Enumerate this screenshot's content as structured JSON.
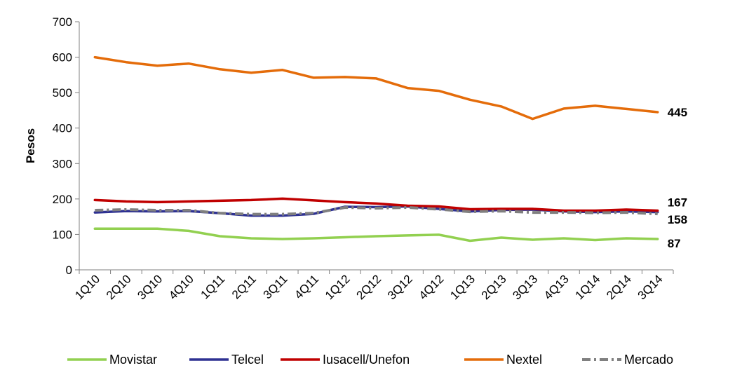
{
  "chart_data": {
    "type": "line",
    "title": "",
    "xlabel": "",
    "ylabel": "Pesos",
    "ylim": [
      0,
      700
    ],
    "yticks": [
      0,
      100,
      200,
      300,
      400,
      500,
      600,
      700
    ],
    "grid": false,
    "legend_position": "bottom",
    "categories": [
      "1Q10",
      "2Q10",
      "3Q10",
      "4Q10",
      "1Q11",
      "2Q11",
      "3Q11",
      "4Q11",
      "1Q12",
      "2Q12",
      "3Q12",
      "4Q12",
      "1Q13",
      "2Q13",
      "3Q13",
      "4Q13",
      "1Q14",
      "2Q14",
      "3Q14"
    ],
    "series": [
      {
        "name": "Movistar",
        "color": "#92D050",
        "dash": "solid",
        "values": [
          116,
          116,
          116,
          110,
          95,
          89,
          87,
          89,
          92,
          95,
          97,
          99,
          82,
          91,
          85,
          89,
          84,
          89,
          87
        ]
      },
      {
        "name": "Telcel",
        "color": "#2E3192",
        "dash": "solid",
        "values": [
          162,
          166,
          165,
          166,
          160,
          153,
          153,
          158,
          178,
          177,
          179,
          172,
          165,
          169,
          170,
          165,
          163,
          165,
          163
        ]
      },
      {
        "name": "Iusacell/Unefon",
        "color": "#C00000",
        "dash": "solid",
        "values": [
          197,
          193,
          191,
          193,
          195,
          197,
          201,
          196,
          191,
          187,
          181,
          179,
          171,
          172,
          172,
          167,
          167,
          170,
          167
        ]
      },
      {
        "name": "Nextel",
        "color": "#E46C0A",
        "dash": "solid",
        "values": [
          600,
          586,
          576,
          582,
          566,
          556,
          564,
          542,
          544,
          540,
          513,
          505,
          480,
          461,
          426,
          455,
          463,
          454,
          445
        ]
      },
      {
        "name": "Mercado",
        "color": "#808080",
        "dash": "dashdot",
        "values": [
          168,
          170,
          168,
          168,
          160,
          157,
          157,
          160,
          176,
          174,
          176,
          171,
          164,
          166,
          162,
          162,
          161,
          162,
          158
        ]
      }
    ],
    "end_labels": [
      {
        "series": "Nextel",
        "text": "445"
      },
      {
        "series": "Iusacell/Unefon",
        "text": "167"
      },
      {
        "series": "Mercado",
        "text": "158"
      },
      {
        "series": "Movistar",
        "text": "87"
      }
    ]
  }
}
